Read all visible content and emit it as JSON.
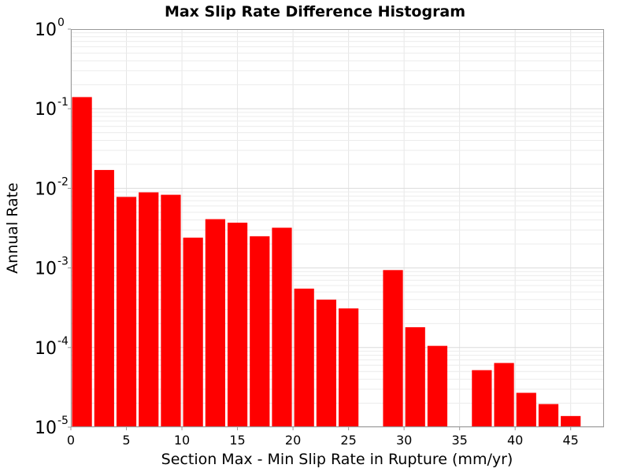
{
  "chart_data": {
    "type": "bar",
    "title": "Max Slip Rate Difference Histogram",
    "xlabel": "Section Max - Min Slip Rate in Rupture (mm/yr)",
    "ylabel": "Annual Rate",
    "xlim": [
      0,
      48
    ],
    "ylim": [
      1e-05,
      1
    ],
    "yscale": "log",
    "bin_width": 2,
    "bar_color": "#ff0000",
    "grid": true,
    "x_ticks": [
      "0",
      "5",
      "10",
      "15",
      "20",
      "25",
      "30",
      "35",
      "40",
      "45"
    ],
    "y_ticks": [
      {
        "base": "10",
        "exp": "0"
      },
      {
        "base": "10",
        "exp": "-1"
      },
      {
        "base": "10",
        "exp": "-2"
      },
      {
        "base": "10",
        "exp": "-3"
      },
      {
        "base": "10",
        "exp": "-4"
      },
      {
        "base": "10",
        "exp": "-5"
      }
    ],
    "bins": [
      {
        "x": 1,
        "y": 0.14
      },
      {
        "x": 3,
        "y": 0.017
      },
      {
        "x": 5,
        "y": 0.0078
      },
      {
        "x": 7,
        "y": 0.0089
      },
      {
        "x": 9,
        "y": 0.0083
      },
      {
        "x": 11,
        "y": 0.0024
      },
      {
        "x": 13,
        "y": 0.0041
      },
      {
        "x": 15,
        "y": 0.0037
      },
      {
        "x": 17,
        "y": 0.0025
      },
      {
        "x": 19,
        "y": 0.0032
      },
      {
        "x": 21,
        "y": 0.00055
      },
      {
        "x": 23,
        "y": 0.0004
      },
      {
        "x": 25,
        "y": 0.00031
      },
      {
        "x": 29,
        "y": 0.00094
      },
      {
        "x": 31,
        "y": 0.00018
      },
      {
        "x": 33,
        "y": 0.000105
      },
      {
        "x": 37,
        "y": 5.2e-05
      },
      {
        "x": 39,
        "y": 6.4e-05
      },
      {
        "x": 41,
        "y": 2.7e-05
      },
      {
        "x": 43,
        "y": 1.95e-05
      },
      {
        "x": 45,
        "y": 1.38e-05
      }
    ]
  }
}
